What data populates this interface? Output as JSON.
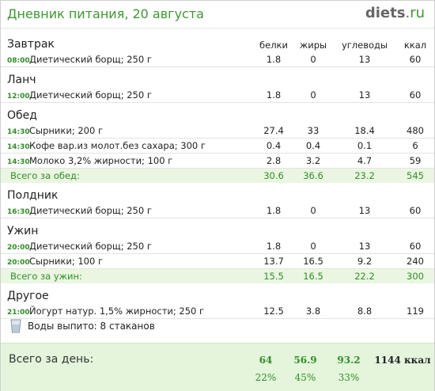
{
  "header": {
    "title": "Дневник питания, 20 августа",
    "logo_main": "diets",
    "logo_dot": ".",
    "logo_tld": "ru"
  },
  "columns": {
    "proteins": "белки",
    "fats": "жиры",
    "carbs": "углеводы",
    "kcal": "ккал"
  },
  "meals": [
    {
      "name": "Завтрак",
      "items": [
        {
          "time": "08:00",
          "food": "Диетический борщ; 250 г",
          "proteins": "1.8",
          "fats": "0",
          "carbs": "13",
          "kcal": "60"
        }
      ]
    },
    {
      "name": "Ланч",
      "items": [
        {
          "time": "12:00",
          "food": "Диетический борщ; 250 г",
          "proteins": "1.8",
          "fats": "0",
          "carbs": "13",
          "kcal": "60"
        }
      ]
    },
    {
      "name": "Обед",
      "items": [
        {
          "time": "14:30",
          "food": "Сырники; 200 г",
          "proteins": "27.4",
          "fats": "33",
          "carbs": "18.4",
          "kcal": "480"
        },
        {
          "time": "14:30",
          "food": "Кофе вар.из молот.без сахара; 300 г",
          "proteins": "0.4",
          "fats": "0.4",
          "carbs": "0.1",
          "kcal": "6"
        },
        {
          "time": "14:30",
          "food": "Молоко 3,2% жирности; 100 г",
          "proteins": "2.8",
          "fats": "3.2",
          "carbs": "4.7",
          "kcal": "59"
        }
      ],
      "total": {
        "label": "Всего за обед:",
        "proteins": "30.6",
        "fats": "36.6",
        "carbs": "23.2",
        "kcal": "545"
      }
    },
    {
      "name": "Полдник",
      "items": [
        {
          "time": "16:30",
          "food": "Диетический борщ; 250 г",
          "proteins": "1.8",
          "fats": "0",
          "carbs": "13",
          "kcal": "60"
        }
      ]
    },
    {
      "name": "Ужин",
      "items": [
        {
          "time": "20:00",
          "food": "Диетический борщ; 250 г",
          "proteins": "1.8",
          "fats": "0",
          "carbs": "13",
          "kcal": "60"
        },
        {
          "time": "20:00",
          "food": "Сырники; 100 г",
          "proteins": "13.7",
          "fats": "16.5",
          "carbs": "9.2",
          "kcal": "240"
        }
      ],
      "total": {
        "label": "Всего за ужин:",
        "proteins": "15.5",
        "fats": "16.5",
        "carbs": "22.2",
        "kcal": "300"
      }
    },
    {
      "name": "Другое",
      "items": [
        {
          "time": "21:00",
          "food": "Йогурт натур. 1,5% жирности; 250 г",
          "proteins": "12.5",
          "fats": "3.8",
          "carbs": "8.8",
          "kcal": "119"
        }
      ]
    }
  ],
  "water": {
    "text": "Воды выпито: 8 стаканов",
    "icon": "glass-icon"
  },
  "day_total": {
    "label": "Всего за день:",
    "proteins": "64",
    "fats": "56.9",
    "carbs": "93.2",
    "kcal": "1144 ккал",
    "proteins_pct": "22%",
    "fats_pct": "45%",
    "carbs_pct": "33%"
  },
  "colors": {
    "accent_green": "#3a9a2d",
    "total_row_bg": "#eaf6e2",
    "footer_bg": "#e4f5dc"
  }
}
